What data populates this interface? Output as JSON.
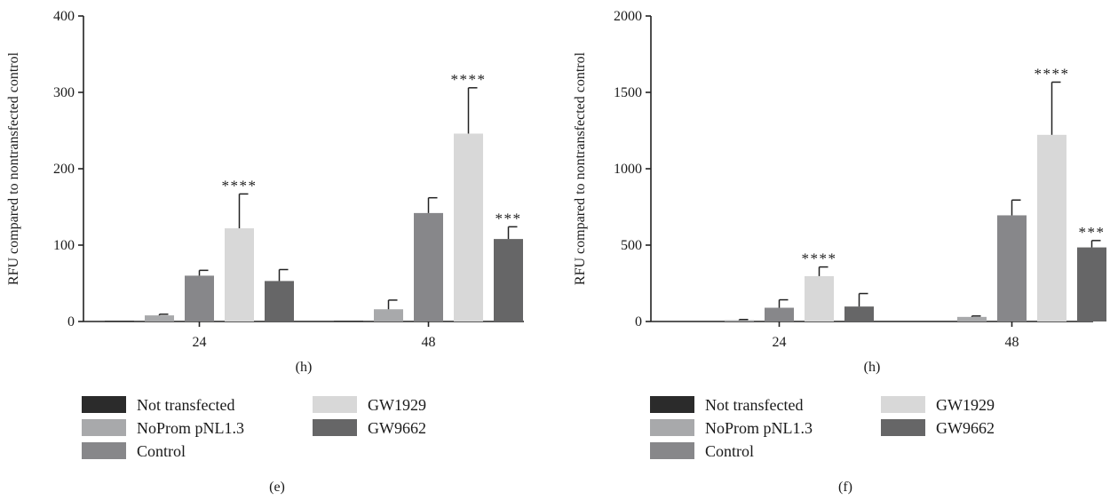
{
  "panels": [
    {
      "panel_label": "(e)",
      "chart_data": {
        "type": "bar",
        "ylabel": "RFU compared to nontransfected control",
        "xlabel": "(h)",
        "categories": [
          "24",
          "48"
        ],
        "ylim": [
          0,
          400
        ],
        "yticks": [
          0,
          100,
          200,
          300,
          400
        ],
        "series": [
          {
            "name": "Not transfected",
            "color": "#2b2b2b",
            "values": [
              1,
              1
            ],
            "errors": [
              0,
              0
            ],
            "sig": [
              "",
              ""
            ]
          },
          {
            "name": "NoProm pNL1.3",
            "color": "#a8a9ab",
            "values": [
              8,
              16
            ],
            "errors": [
              1.5,
              12
            ],
            "sig": [
              "",
              ""
            ]
          },
          {
            "name": "Control",
            "color": "#87878a",
            "values": [
              60,
              142
            ],
            "errors": [
              7,
              20
            ],
            "sig": [
              "",
              ""
            ]
          },
          {
            "name": "GW1929",
            "color": "#d8d8d8",
            "values": [
              122,
              246
            ],
            "errors": [
              45,
              60
            ],
            "sig": [
              "****",
              "****"
            ]
          },
          {
            "name": "GW9662",
            "color": "#666667",
            "values": [
              53,
              108
            ],
            "errors": [
              15,
              16
            ],
            "sig": [
              "",
              "***"
            ]
          }
        ]
      }
    },
    {
      "panel_label": "(f)",
      "chart_data": {
        "type": "bar",
        "ylabel": "RFU compared to nontransfected control",
        "xlabel": "(h)",
        "categories": [
          "24",
          "48"
        ],
        "ylim": [
          0,
          2000
        ],
        "yticks": [
          0,
          500,
          1000,
          1500,
          2000
        ],
        "series": [
          {
            "name": "Not transfected",
            "color": "#2b2b2b",
            "values": [
              0,
              0
            ],
            "errors": [
              0,
              0
            ],
            "sig": [
              "",
              ""
            ]
          },
          {
            "name": "NoProm pNL1.3",
            "color": "#a8a9ab",
            "values": [
              8,
              30
            ],
            "errors": [
              5,
              6
            ],
            "sig": [
              "",
              ""
            ]
          },
          {
            "name": "Control",
            "color": "#87878a",
            "values": [
              90,
              695
            ],
            "errors": [
              52,
              100
            ],
            "sig": [
              "",
              ""
            ]
          },
          {
            "name": "GW1929",
            "color": "#d8d8d8",
            "values": [
              297,
              1222
            ],
            "errors": [
              60,
              345
            ],
            "sig": [
              "****",
              "****"
            ]
          },
          {
            "name": "GW9662",
            "color": "#666667",
            "values": [
              98,
              485
            ],
            "errors": [
              85,
              45
            ],
            "sig": [
              "",
              "***"
            ]
          }
        ]
      }
    }
  ]
}
